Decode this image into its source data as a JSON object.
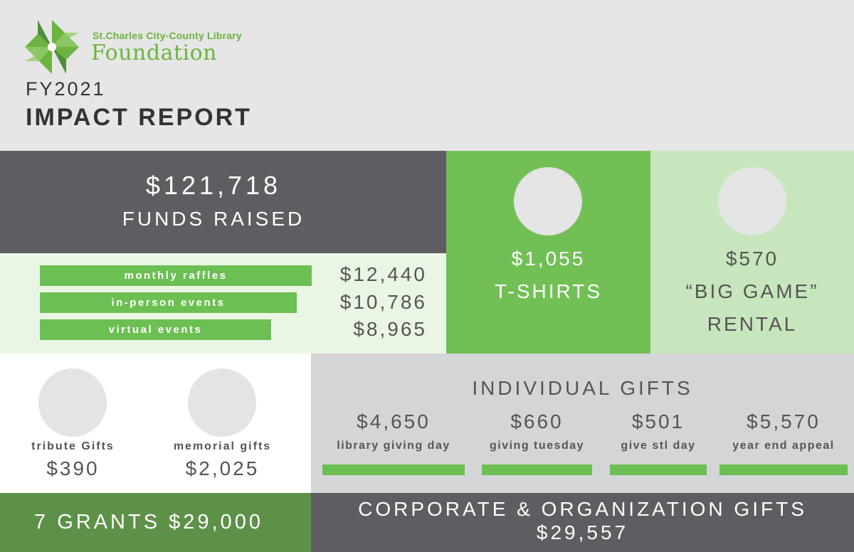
{
  "header": {
    "logo_subtitle": "St.Charles City-County Library",
    "logo_title": "Foundation",
    "fiscal_year": "FY2021",
    "report_title": "IMPACT REPORT"
  },
  "funds": {
    "amount": "$121,718",
    "label": "FUNDS RAISED",
    "items": [
      {
        "label": "monthly raffles",
        "amount": "$12,440",
        "value": 12440
      },
      {
        "label": "in-person events",
        "amount": "$10,786",
        "value": 10786
      },
      {
        "label": "virtual events",
        "amount": "$8,965",
        "value": 8965
      }
    ]
  },
  "tshirts": {
    "amount": "$1,055",
    "label": "T-SHIRTS"
  },
  "rental": {
    "amount": "$570",
    "label_line1": "“BIG GAME”",
    "label_line2": "RENTAL"
  },
  "tribute": {
    "label": "tribute Gifts",
    "amount": "$390"
  },
  "memorial": {
    "label": "memorial gifts",
    "amount": "$2,025"
  },
  "individual": {
    "title": "INDIVIDUAL GIFTS",
    "items": [
      {
        "amount": "$4,650",
        "label": "library giving day"
      },
      {
        "amount": "$660",
        "label": "giving tuesday"
      },
      {
        "amount": "$501",
        "label": "give stl day"
      },
      {
        "amount": "$5,570",
        "label": "year end appeal"
      }
    ]
  },
  "grants": {
    "text": "7 GRANTS $29,000"
  },
  "corporate": {
    "title": "CORPORATE & ORGANIZATION GIFTS",
    "amount": "$29,557"
  },
  "colors": {
    "green": "#6cbf53",
    "dark_gray": "#5f5d62",
    "light_green": "#c8e6bd",
    "dark_green": "#5d9148"
  },
  "icons": {
    "logo": "star-flower-logo-icon"
  }
}
